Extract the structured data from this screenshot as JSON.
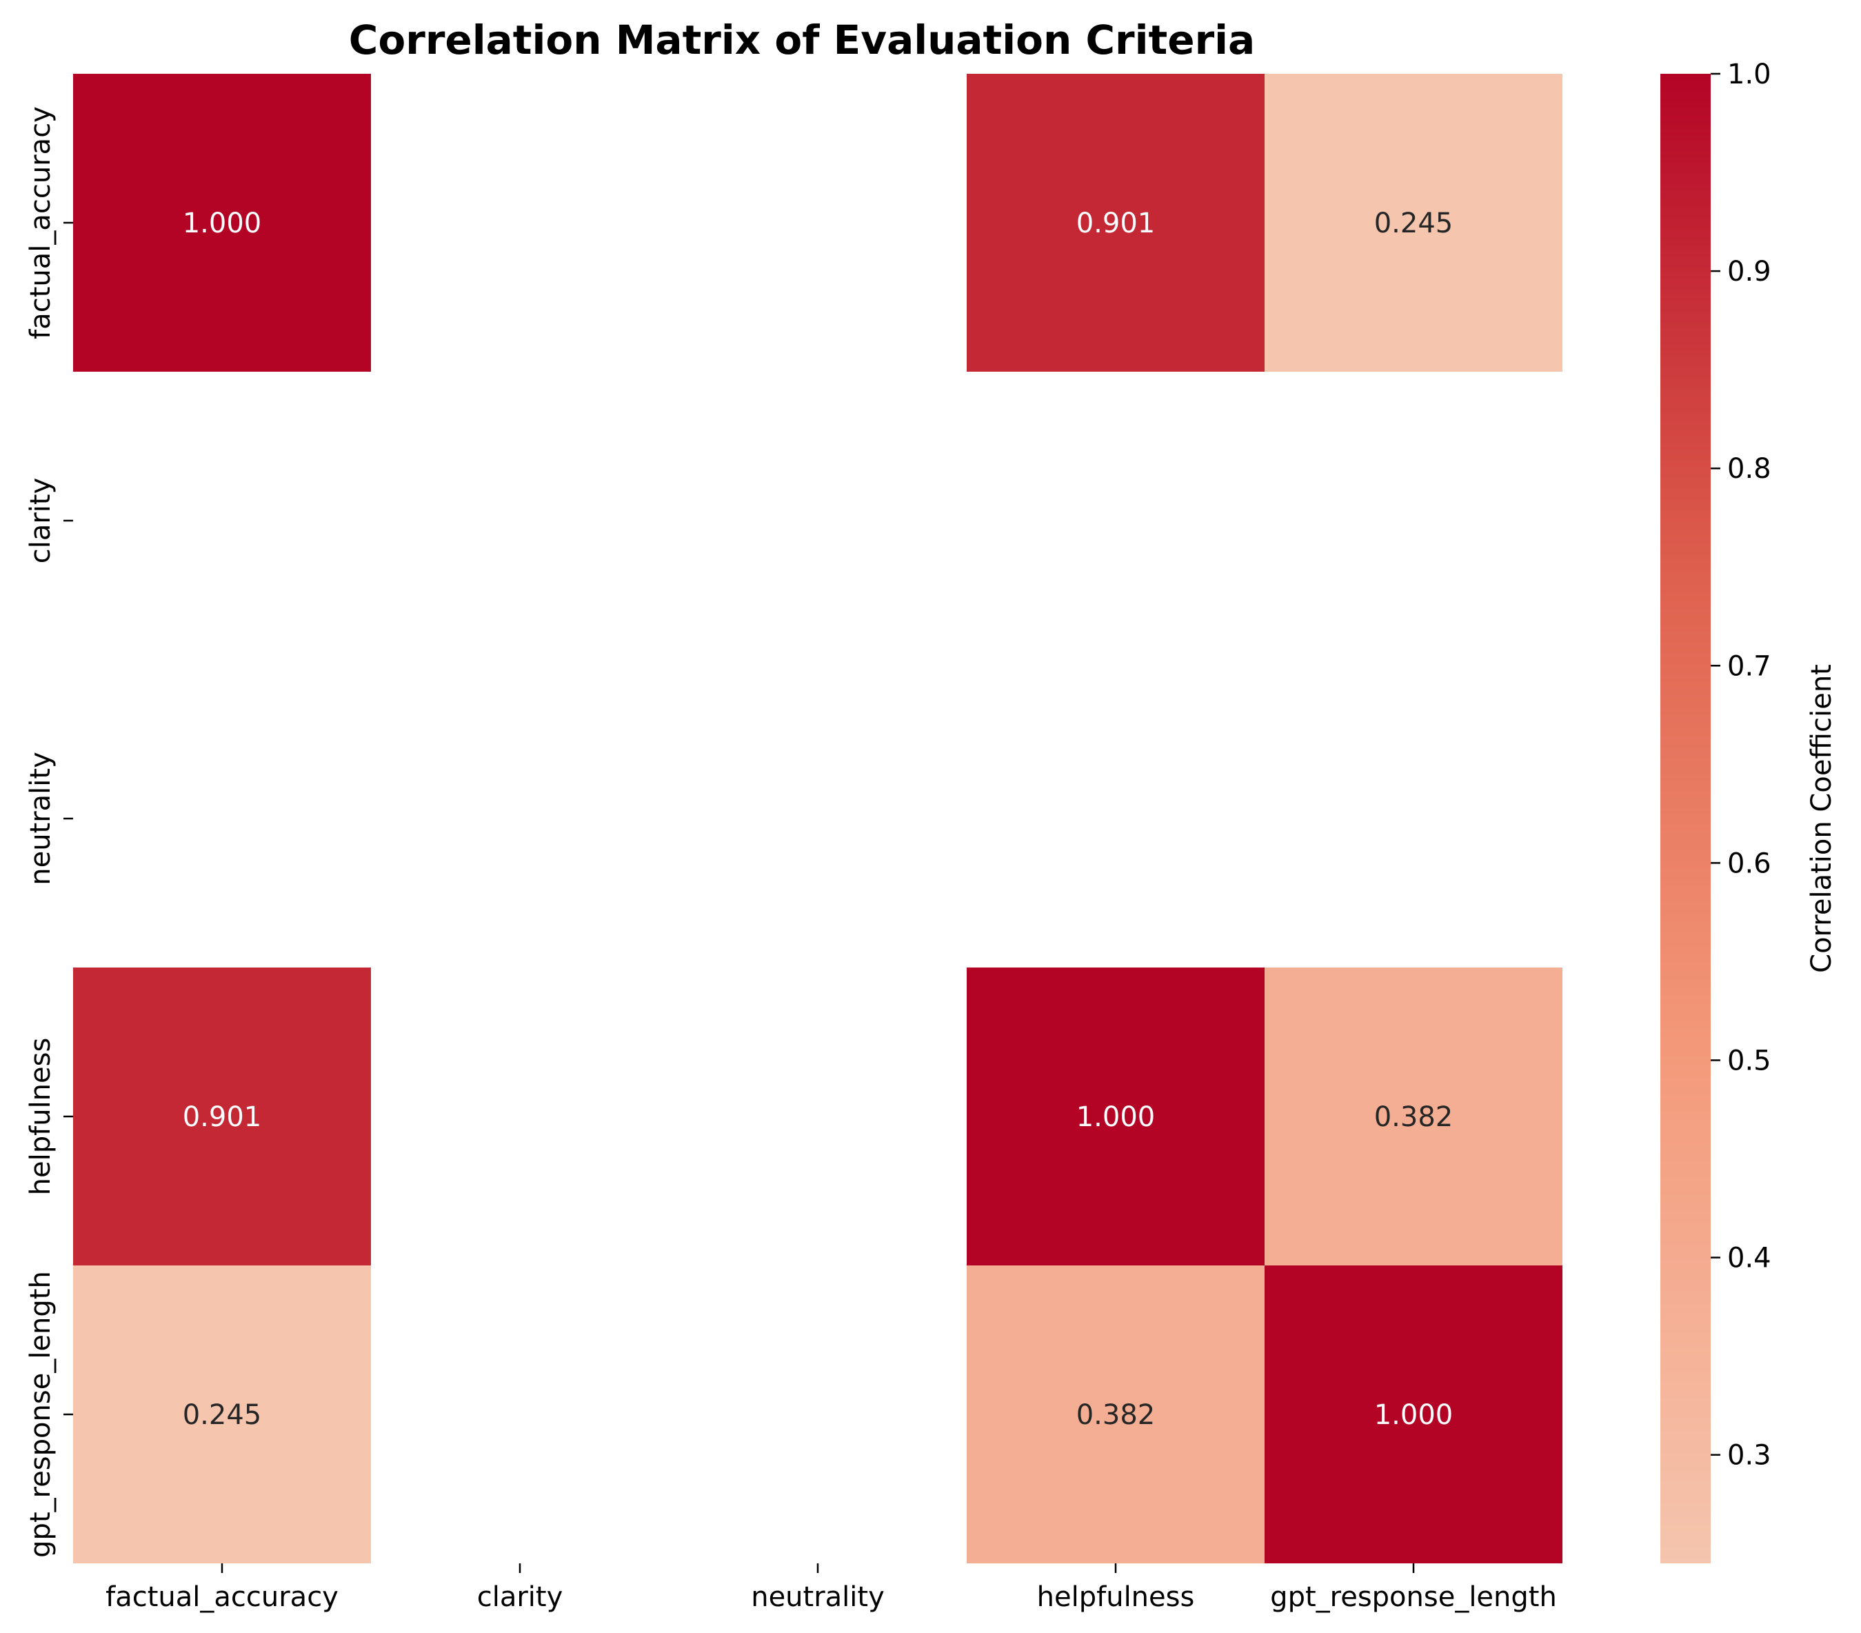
{
  "chart_data": {
    "type": "heatmap",
    "title": "Correlation Matrix of Evaluation Criteria",
    "x_labels": [
      "factual_accuracy",
      "clarity",
      "neutrality",
      "helpfulness",
      "gpt_response_length"
    ],
    "y_labels": [
      "factual_accuracy",
      "clarity",
      "neutrality",
      "helpfulness",
      "gpt_response_length"
    ],
    "matrix": [
      [
        1.0,
        null,
        null,
        0.901,
        0.245
      ],
      [
        null,
        null,
        null,
        null,
        null
      ],
      [
        null,
        null,
        null,
        null,
        null
      ],
      [
        0.901,
        null,
        null,
        1.0,
        0.382
      ],
      [
        0.245,
        null,
        null,
        0.382,
        1.0
      ]
    ],
    "colorbar": {
      "label": "Correlation Coefficient",
      "vmin": 0.245,
      "vmax": 1.0,
      "ticks": [
        "0.3",
        "0.4",
        "0.5",
        "0.6",
        "0.7",
        "0.8",
        "0.9",
        "1.0"
      ],
      "colormap": "coolwarm"
    },
    "value_format": "3 decimals",
    "grid": false
  }
}
